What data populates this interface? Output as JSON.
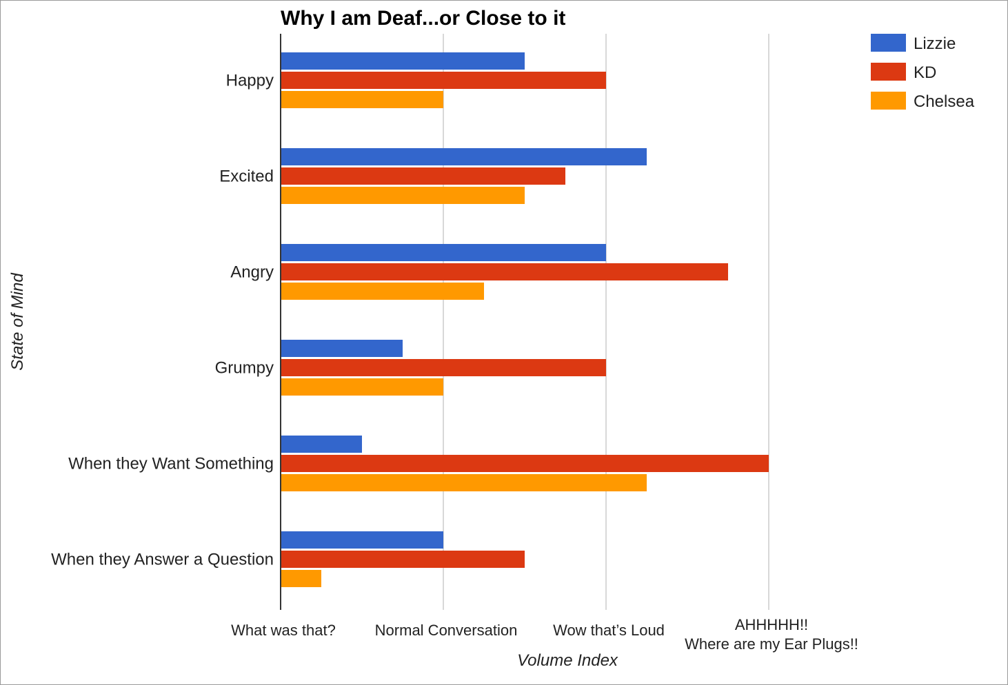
{
  "chart_data": {
    "type": "bar",
    "orientation": "horizontal",
    "title": "Why I am Deaf...or Close to it",
    "xlabel": "Volume Index",
    "ylabel": "State of Mind",
    "categories": [
      "Happy",
      "Excited",
      "Angry",
      "Grumpy",
      "When they Want Something",
      "When they Answer a Question"
    ],
    "series": [
      {
        "name": "Lizzie",
        "color": "#3366cc",
        "values": [
          1.5,
          2.25,
          2,
          0.75,
          0.5,
          1
        ]
      },
      {
        "name": "KD",
        "color": "#dc3912",
        "values": [
          2,
          1.75,
          2.75,
          2,
          3,
          1.5
        ]
      },
      {
        "name": "Chelsea",
        "color": "#ff9900",
        "values": [
          1,
          1.5,
          1.25,
          1,
          2.25,
          0.25
        ]
      }
    ],
    "xlim": [
      0,
      3
    ],
    "xticks": [
      {
        "value": 0,
        "lines": [
          "What was that?"
        ]
      },
      {
        "value": 1,
        "lines": [
          "Normal Conversation"
        ]
      },
      {
        "value": 2,
        "lines": [
          "Wow that’s Loud"
        ]
      },
      {
        "value": 3,
        "lines": [
          "AHHHHH!!",
          "Where are my Ear Plugs!!"
        ]
      }
    ],
    "grid": true,
    "legend_position": "top-right"
  }
}
